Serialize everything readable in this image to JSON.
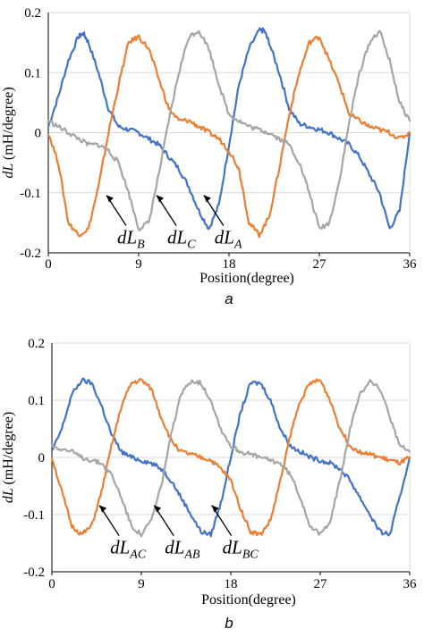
{
  "chart_data": [
    {
      "type": "line",
      "panel_label": "a",
      "xlabel": "Position(degree)",
      "ylabel": "dL (mH/degree)",
      "ylabel_italic": "dL",
      "ylabel_unit": "(mH/degree)",
      "xlim": [
        0,
        36
      ],
      "ylim": [
        -0.2,
        0.2
      ],
      "x_ticks": [
        "0",
        "9",
        "18",
        "27",
        "36"
      ],
      "y_ticks": [
        "0.2",
        "0.1",
        "0",
        "-0.1",
        "-0.2"
      ],
      "grid": "horizontal",
      "series": [
        {
          "name": "dLA",
          "color": "#4472C4",
          "x": [
            0,
            1,
            2,
            3,
            3.5,
            4,
            5,
            6,
            7,
            8,
            9,
            10,
            11,
            12,
            13,
            14,
            15,
            16,
            17,
            18,
            19,
            20,
            21,
            21.5,
            22,
            23,
            24,
            25,
            26,
            27,
            28,
            29,
            30,
            31,
            32,
            33,
            34,
            35,
            36
          ],
          "y": [
            0.01,
            0.06,
            0.12,
            0.16,
            0.165,
            0.15,
            0.1,
            0.04,
            0.01,
            0.005,
            0.0,
            -0.01,
            -0.02,
            -0.04,
            -0.06,
            -0.09,
            -0.13,
            -0.16,
            -0.12,
            -0.02,
            0.08,
            0.14,
            0.17,
            0.17,
            0.15,
            0.1,
            0.04,
            0.015,
            0.01,
            0.005,
            0.0,
            -0.01,
            -0.02,
            -0.04,
            -0.07,
            -0.1,
            -0.16,
            -0.13,
            0.0
          ]
        },
        {
          "name": "dLB",
          "color": "#ED7D31",
          "x": [
            0,
            1,
            2,
            3,
            4,
            5,
            6,
            7,
            8,
            9,
            10,
            11,
            12,
            13,
            14,
            15,
            16,
            17,
            18,
            19,
            20,
            21,
            22,
            23,
            24,
            25,
            26,
            27,
            28,
            29,
            30,
            31,
            32,
            33,
            34,
            35,
            36
          ],
          "y": [
            0.0,
            -0.05,
            -0.15,
            -0.17,
            -0.16,
            -0.09,
            0.0,
            0.08,
            0.15,
            0.16,
            0.14,
            0.09,
            0.04,
            0.02,
            0.02,
            0.01,
            0.0,
            -0.01,
            -0.03,
            -0.06,
            -0.15,
            -0.17,
            -0.14,
            -0.06,
            0.03,
            0.1,
            0.15,
            0.16,
            0.12,
            0.08,
            0.03,
            0.02,
            0.01,
            0.005,
            0.0,
            -0.01,
            0.0
          ]
        },
        {
          "name": "dLC",
          "color": "#A5A5A5",
          "x": [
            0,
            1,
            2,
            3,
            4,
            5,
            6,
            7,
            8,
            9,
            10,
            11,
            12,
            13,
            14,
            15,
            16,
            17,
            18,
            19,
            20,
            21,
            22,
            23,
            24,
            25,
            26,
            27,
            28,
            29,
            30,
            31,
            32,
            33,
            34,
            35,
            36
          ],
          "y": [
            0.02,
            0.01,
            0.0,
            -0.01,
            -0.02,
            -0.02,
            -0.03,
            -0.05,
            -0.1,
            -0.16,
            -0.15,
            -0.07,
            0.02,
            0.1,
            0.16,
            0.17,
            0.14,
            0.08,
            0.03,
            0.02,
            0.01,
            0.005,
            0.0,
            -0.01,
            -0.02,
            -0.05,
            -0.1,
            -0.16,
            -0.15,
            -0.08,
            0.02,
            0.1,
            0.15,
            0.17,
            0.12,
            0.05,
            0.02
          ]
        }
      ],
      "annotations": [
        {
          "label": "dL",
          "sub": "B",
          "x": 6.5,
          "y": -0.11
        },
        {
          "label": "dL",
          "sub": "C",
          "x": 11.5,
          "y": -0.11
        },
        {
          "label": "dL",
          "sub": "A",
          "x": 16.2,
          "y": -0.11
        }
      ]
    },
    {
      "type": "line",
      "panel_label": "b",
      "xlabel": "Position(degree)",
      "ylabel": "dL (mH/degree)",
      "ylabel_italic": "dL",
      "ylabel_unit": "(mH/degree)",
      "xlim": [
        0,
        36
      ],
      "ylim": [
        -0.2,
        0.2
      ],
      "x_ticks": [
        "0",
        "9",
        "18",
        "27",
        "36"
      ],
      "y_ticks": [
        "0.2",
        "0.1",
        "0",
        "-0.1",
        "-0.2"
      ],
      "grid": "horizontal",
      "series": [
        {
          "name": "dLAB",
          "color": "#4472C4",
          "x": [
            0,
            1,
            2,
            3,
            4,
            5,
            6,
            7,
            8,
            9,
            10,
            11,
            12,
            13,
            14,
            15,
            16,
            17,
            18,
            19,
            20,
            21,
            22,
            23,
            24,
            25,
            26,
            27,
            28,
            29,
            30,
            31,
            32,
            33,
            34,
            35,
            36
          ],
          "y": [
            0.01,
            0.05,
            0.11,
            0.135,
            0.13,
            0.09,
            0.04,
            0.01,
            0.0,
            -0.005,
            -0.01,
            -0.02,
            -0.04,
            -0.07,
            -0.1,
            -0.13,
            -0.135,
            -0.08,
            0.0,
            0.08,
            0.13,
            0.13,
            0.1,
            0.05,
            0.02,
            0.01,
            0.0,
            -0.005,
            -0.01,
            -0.02,
            -0.04,
            -0.07,
            -0.1,
            -0.13,
            -0.135,
            -0.07,
            0.0
          ]
        },
        {
          "name": "dLAC",
          "color": "#ED7D31",
          "x": [
            0,
            1,
            2,
            3,
            4,
            5,
            6,
            7,
            8,
            9,
            10,
            11,
            12,
            13,
            14,
            15,
            16,
            17,
            18,
            19,
            20,
            21,
            22,
            23,
            24,
            25,
            26,
            27,
            28,
            29,
            30,
            31,
            32,
            33,
            34,
            35,
            36
          ],
          "y": [
            0.0,
            -0.06,
            -0.12,
            -0.135,
            -0.12,
            -0.06,
            0.02,
            0.09,
            0.13,
            0.135,
            0.12,
            0.07,
            0.03,
            0.01,
            0.005,
            0.0,
            -0.005,
            -0.02,
            -0.04,
            -0.09,
            -0.13,
            -0.135,
            -0.11,
            -0.04,
            0.04,
            0.1,
            0.13,
            0.135,
            0.1,
            0.05,
            0.02,
            0.01,
            0.005,
            0.0,
            -0.005,
            -0.01,
            0.0
          ]
        },
        {
          "name": "dLBC",
          "color": "#A5A5A5",
          "x": [
            0,
            1,
            2,
            3,
            4,
            5,
            6,
            7,
            8,
            9,
            10,
            11,
            12,
            13,
            14,
            15,
            16,
            17,
            18,
            19,
            20,
            21,
            22,
            23,
            24,
            25,
            26,
            27,
            28,
            29,
            30,
            31,
            32,
            33,
            34,
            35,
            36
          ],
          "y": [
            0.02,
            0.015,
            0.01,
            0.0,
            -0.005,
            -0.01,
            -0.03,
            -0.07,
            -0.12,
            -0.135,
            -0.11,
            -0.05,
            0.04,
            0.11,
            0.135,
            0.13,
            0.1,
            0.05,
            0.02,
            0.01,
            0.005,
            0.0,
            -0.005,
            -0.01,
            -0.03,
            -0.07,
            -0.12,
            -0.135,
            -0.11,
            -0.04,
            0.05,
            0.11,
            0.135,
            0.12,
            0.07,
            0.02,
            0.01
          ]
        }
      ],
      "annotations": [
        {
          "label": "dL",
          "sub": "AC",
          "x": 5.5,
          "y": -0.09
        },
        {
          "label": "dL",
          "sub": "AB",
          "x": 11.0,
          "y": -0.09
        },
        {
          "label": "dL",
          "sub": "BC",
          "x": 16.8,
          "y": -0.09
        }
      ]
    }
  ]
}
